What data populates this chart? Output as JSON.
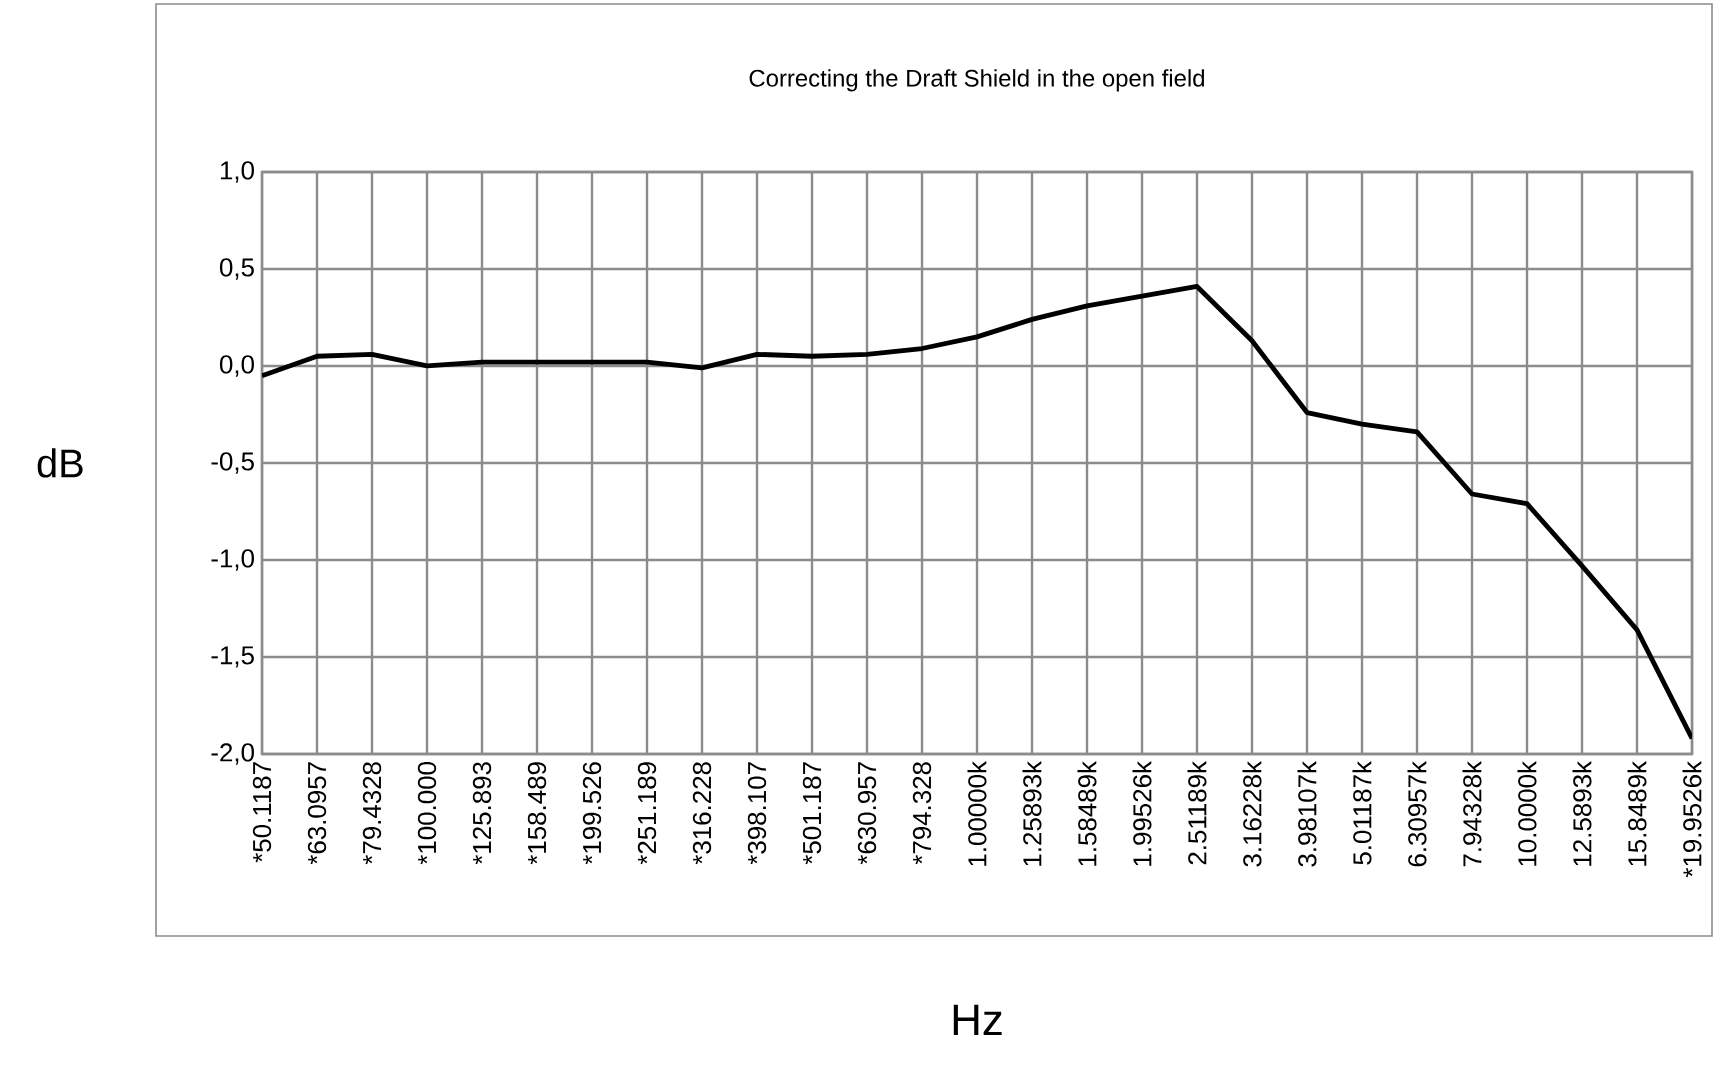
{
  "chart_data": {
    "type": "line",
    "title": "Correcting the Draft Shield in the open field",
    "xlabel": "Hz",
    "ylabel": "dB",
    "categories": [
      "*50.1187",
      "*63.0957",
      "*79.4328",
      "*100.000",
      "*125.893",
      "*158.489",
      "*199.526",
      "*251.189",
      "*316.228",
      "*398.107",
      "*501.187",
      "*630.957",
      "*794.328",
      "1.00000k",
      "1.25893k",
      "1.58489k",
      "1.99526k",
      "2.51189k",
      "3.16228k",
      "3.98107k",
      "5.01187k",
      "6.30957k",
      "7.94328k",
      "10.0000k",
      "12.5893k",
      "15.8489k",
      "*19.9526k"
    ],
    "values": [
      -0.05,
      0.05,
      0.06,
      0.0,
      0.02,
      0.02,
      0.02,
      0.02,
      -0.01,
      0.06,
      0.05,
      0.06,
      0.09,
      0.15,
      0.24,
      0.31,
      0.36,
      0.41,
      0.13,
      -0.24,
      -0.3,
      -0.34,
      -0.66,
      -0.71,
      -1.03,
      -1.36,
      -1.92
    ],
    "color": "#000000",
    "ylim": [
      -2,
      1
    ],
    "yticks": [
      {
        "value": -2,
        "label": "-2,0"
      },
      {
        "value": -1.5,
        "label": "-1,5"
      },
      {
        "value": -1,
        "label": "-1,0"
      },
      {
        "value": -0.5,
        "label": "-0,5"
      },
      {
        "value": 0,
        "label": "0,0"
      },
      {
        "value": 0.5,
        "label": "0,5"
      },
      {
        "value": 1,
        "label": "1,0"
      }
    ],
    "grid": true,
    "marker": "none",
    "line_style": "solid"
  }
}
